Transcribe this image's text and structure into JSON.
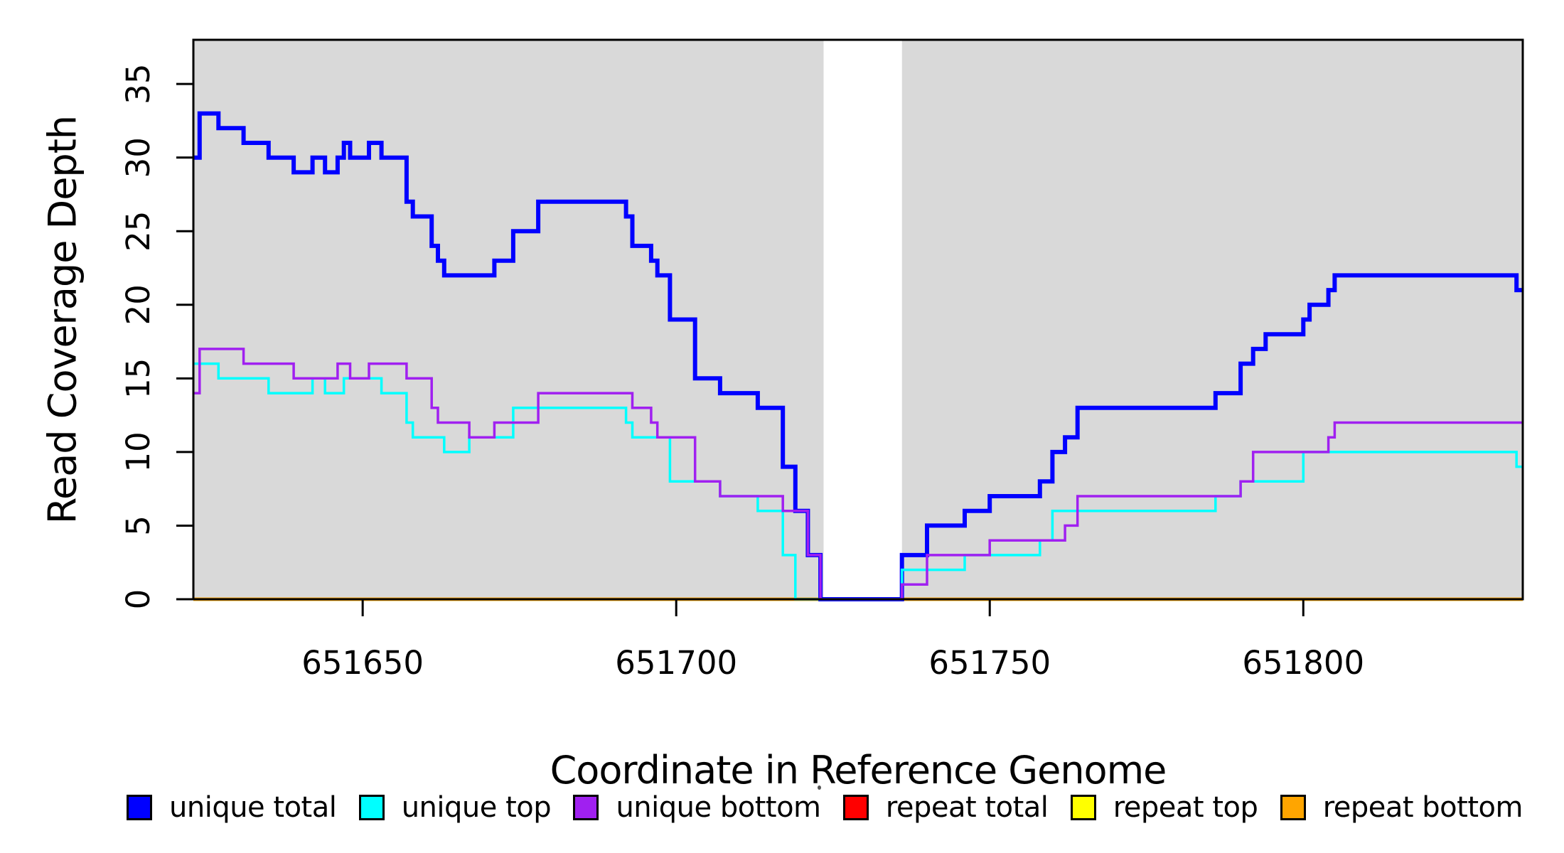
{
  "figure": {
    "xlabel": "Coordinate in Reference Genome",
    "ylabel": "Read Coverage Depth",
    "background": "#ffffff",
    "plot_background": "#d9d9d9",
    "axis_color": "#000000"
  },
  "chart_data": {
    "type": "line",
    "step": true,
    "title": "",
    "xlabel": "Coordinate in Reference Genome",
    "ylabel": "Read Coverage Depth",
    "xlim": [
      651623,
      651835
    ],
    "ylim": [
      0,
      38
    ],
    "grid": false,
    "legend_position": "bottom",
    "plot_background": "#d9d9d9",
    "x_ticks": [
      {
        "label": "651650",
        "coord": 651650
      },
      {
        "label": "651700",
        "coord": 651700
      },
      {
        "label": "651750",
        "coord": 651750
      },
      {
        "label": "651800",
        "coord": 651800
      }
    ],
    "y_ticks": [
      {
        "label": "0",
        "value": 0
      },
      {
        "label": "5",
        "value": 5
      },
      {
        "label": "10",
        "value": 10
      },
      {
        "label": "15",
        "value": 15
      },
      {
        "label": "20",
        "value": 20
      },
      {
        "label": "25",
        "value": 25
      },
      {
        "label": "30",
        "value": 30
      },
      {
        "label": "35",
        "value": 35
      }
    ],
    "gap_region": {
      "x_start": 651723.5,
      "x_end": 651736,
      "color": "#ffffff"
    },
    "series": [
      {
        "name": "unique total",
        "color": "#0000ff",
        "width": 6,
        "layer": 4,
        "points": [
          [
            651623,
            30
          ],
          [
            651624,
            33
          ],
          [
            651627,
            32
          ],
          [
            651631,
            31
          ],
          [
            651635,
            30
          ],
          [
            651639,
            29
          ],
          [
            651642,
            30
          ],
          [
            651644,
            29
          ],
          [
            651646,
            30
          ],
          [
            651647,
            31
          ],
          [
            651648,
            30
          ],
          [
            651651,
            31
          ],
          [
            651653,
            30
          ],
          [
            651657,
            27
          ],
          [
            651658,
            26
          ],
          [
            651661,
            24
          ],
          [
            651662,
            23
          ],
          [
            651663,
            22
          ],
          [
            651671,
            23
          ],
          [
            651674,
            25
          ],
          [
            651678,
            27
          ],
          [
            651692,
            26
          ],
          [
            651693,
            24
          ],
          [
            651696,
            23
          ],
          [
            651697,
            22
          ],
          [
            651699,
            19
          ],
          [
            651703,
            15
          ],
          [
            651707,
            14
          ],
          [
            651713,
            13
          ],
          [
            651717,
            9
          ],
          [
            651719,
            6
          ],
          [
            651721,
            3
          ],
          [
            651723,
            0
          ],
          [
            651736,
            3
          ],
          [
            651740,
            5
          ],
          [
            651746,
            6
          ],
          [
            651750,
            7
          ],
          [
            651758,
            8
          ],
          [
            651760,
            10
          ],
          [
            651762,
            11
          ],
          [
            651764,
            13
          ],
          [
            651786,
            14
          ],
          [
            651790,
            16
          ],
          [
            651792,
            17
          ],
          [
            651794,
            18
          ],
          [
            651800,
            19
          ],
          [
            651801,
            20
          ],
          [
            651804,
            21
          ],
          [
            651805,
            22
          ],
          [
            651834,
            21
          ]
        ]
      },
      {
        "name": "unique top",
        "color": "#00ffff",
        "width": 3.5,
        "layer": 5,
        "points": [
          [
            651623,
            16
          ],
          [
            651627,
            15
          ],
          [
            651635,
            14
          ],
          [
            651642,
            15
          ],
          [
            651644,
            14
          ],
          [
            651647,
            15
          ],
          [
            651653,
            14
          ],
          [
            651657,
            12
          ],
          [
            651658,
            11
          ],
          [
            651663,
            10
          ],
          [
            651667,
            11
          ],
          [
            651674,
            13
          ],
          [
            651692,
            12
          ],
          [
            651693,
            11
          ],
          [
            651699,
            8
          ],
          [
            651707,
            7
          ],
          [
            651713,
            6
          ],
          [
            651717,
            3
          ],
          [
            651719,
            0
          ],
          [
            651736,
            2
          ],
          [
            651746,
            3
          ],
          [
            651758,
            4
          ],
          [
            651760,
            6
          ],
          [
            651786,
            7
          ],
          [
            651790,
            8
          ],
          [
            651800,
            10
          ],
          [
            651834,
            9
          ]
        ]
      },
      {
        "name": "unique bottom",
        "color": "#a020f0",
        "width": 3.5,
        "layer": 6,
        "points": [
          [
            651623,
            14
          ],
          [
            651624,
            17
          ],
          [
            651631,
            16
          ],
          [
            651639,
            15
          ],
          [
            651646,
            16
          ],
          [
            651648,
            15
          ],
          [
            651651,
            16
          ],
          [
            651657,
            15
          ],
          [
            651661,
            13
          ],
          [
            651662,
            12
          ],
          [
            651667,
            11
          ],
          [
            651671,
            12
          ],
          [
            651678,
            14
          ],
          [
            651693,
            13
          ],
          [
            651696,
            12
          ],
          [
            651697,
            11
          ],
          [
            651703,
            8
          ],
          [
            651707,
            7
          ],
          [
            651717,
            6
          ],
          [
            651721,
            3
          ],
          [
            651723,
            0
          ],
          [
            651736,
            1
          ],
          [
            651740,
            3
          ],
          [
            651750,
            4
          ],
          [
            651762,
            5
          ],
          [
            651764,
            7
          ],
          [
            651790,
            8
          ],
          [
            651792,
            10
          ],
          [
            651804,
            11
          ],
          [
            651805,
            12
          ]
        ]
      },
      {
        "name": "repeat total",
        "color": "#ff0000",
        "width": 4.5,
        "layer": 1,
        "points": [
          [
            651623,
            0
          ]
        ]
      },
      {
        "name": "repeat top",
        "color": "#ffff00",
        "width": 4.5,
        "layer": 2,
        "points": [
          [
            651623,
            0
          ]
        ]
      },
      {
        "name": "repeat bottom",
        "color": "#ffa500",
        "width": 4.5,
        "layer": 3,
        "points": [
          [
            651623,
            0
          ]
        ]
      }
    ]
  },
  "legend": {
    "items": [
      {
        "label": "unique total",
        "color": "#0000ff"
      },
      {
        "label": "unique top",
        "color": "#00ffff"
      },
      {
        "label": "unique bottom",
        "color": "#a020f0"
      },
      {
        "label": "repeat total",
        "color": "#ff0000"
      },
      {
        "label": "repeat top",
        "color": "#ffff00"
      },
      {
        "label": "repeat bottom",
        "color": "#ffa500"
      }
    ]
  }
}
